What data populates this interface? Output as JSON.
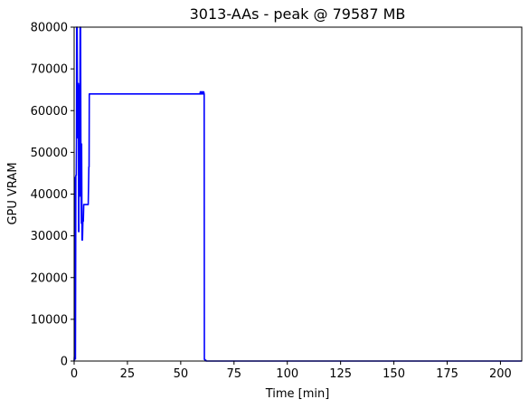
{
  "chart_data": {
    "type": "line",
    "title": "3013-AAs - peak @ 79587 MB",
    "xlabel": "Time [min]",
    "ylabel": "GPU VRAM",
    "xlim": [
      0,
      210
    ],
    "ylim": [
      0,
      80000
    ],
    "x_ticks": [
      0,
      25,
      50,
      75,
      100,
      125,
      150,
      175,
      200
    ],
    "x_tick_labels": [
      "0",
      "25",
      "50",
      "75",
      "100",
      "125",
      "150",
      "175",
      "200"
    ],
    "y_ticks": [
      0,
      10000,
      20000,
      30000,
      40000,
      50000,
      60000,
      70000,
      80000
    ],
    "y_tick_labels": [
      "0",
      "10000",
      "20000",
      "30000",
      "40000",
      "50000",
      "60000",
      "70000",
      "80000"
    ],
    "grid": false,
    "series": [
      {
        "color": "#0000ff",
        "x": [
          0,
          0.1,
          0.2,
          0.4,
          0.5,
          0.6,
          0.8,
          1.0,
          1.1,
          1.2,
          1.4,
          1.6,
          1.8,
          2.0,
          2.1,
          2.2,
          2.4,
          2.6,
          2.8,
          3.0,
          3.2,
          3.4,
          3.5,
          3.7,
          3.9,
          4.1,
          4.3,
          4.5,
          4.7,
          4.9,
          5.1,
          5.3,
          5.6,
          5.8,
          6.2,
          6.6,
          6.9,
          7.0,
          7.1,
          7.3,
          59.0,
          59.2,
          59.4,
          59.6,
          59.8,
          60.0,
          60.2,
          60.4,
          60.6,
          60.8,
          61.0,
          61.1,
          61.3,
          61.4,
          61.8,
          62.0,
          210
        ],
        "y": [
          0,
          1000,
          500,
          43000,
          44000,
          500,
          44500,
          44500,
          53000,
          80000,
          80000,
          53500,
          66500,
          66500,
          31000,
          31000,
          66000,
          39500,
          80000,
          80000,
          44500,
          33000,
          52000,
          29000,
          29000,
          33500,
          33500,
          37500,
          37500,
          37500,
          37500,
          37500,
          37500,
          37500,
          37500,
          37500,
          46500,
          46500,
          64000,
          64000,
          64000,
          64500,
          64000,
          64500,
          64000,
          64500,
          64000,
          64500,
          64000,
          64500,
          64000,
          400,
          400,
          200,
          200,
          0,
          0
        ]
      }
    ]
  }
}
